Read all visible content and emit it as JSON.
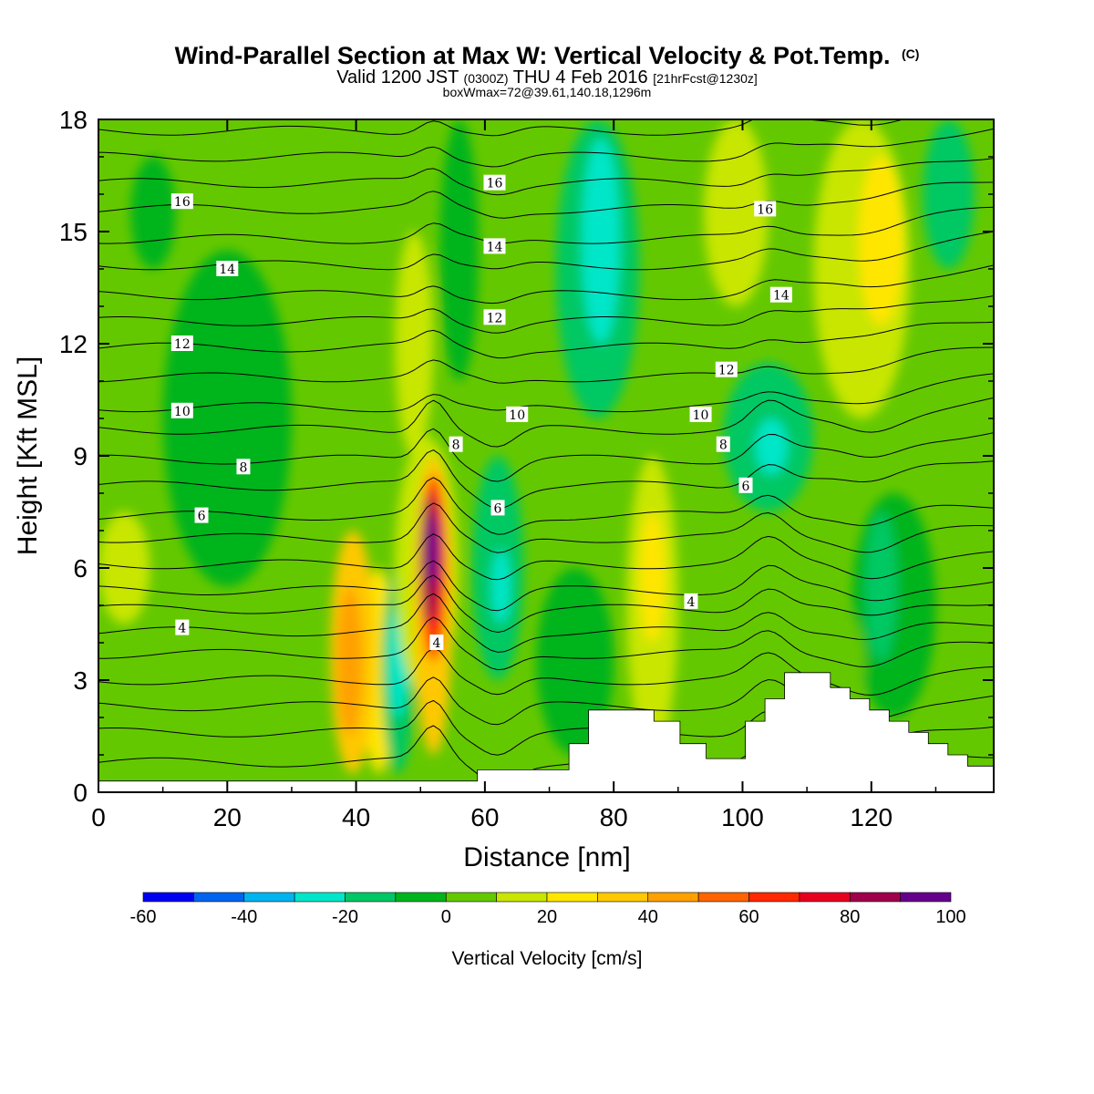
{
  "header": {
    "title": "Wind-Parallel Section at Max W: Vertical Velocity & Pot.Temp.",
    "title_mark": "(C)",
    "subtitle_parts": [
      "Valid 1200 JST ",
      "(0300Z)",
      " THU 4 Feb 2016 ",
      "[21hrFcst@1230z]"
    ],
    "subtitle2": "boxWmax=72@39.61,140.18,1296m"
  },
  "chart_data": {
    "type": "heatmap",
    "xlabel": "Distance [nm]",
    "ylabel": "Height [Kft MSL]",
    "xlim": [
      0,
      139
    ],
    "ylim": [
      0,
      18
    ],
    "x_ticks": [
      0,
      20,
      40,
      60,
      80,
      100,
      120
    ],
    "y_ticks": [
      0,
      3,
      6,
      9,
      12,
      15,
      18
    ],
    "colorbar": {
      "label": "Vertical Velocity [cm/s]",
      "tick_values": [
        -60,
        -40,
        -20,
        0,
        20,
        40,
        60,
        80,
        100
      ],
      "levels": [
        -60,
        -50,
        -40,
        -30,
        -20,
        -10,
        0,
        10,
        20,
        30,
        40,
        50,
        60,
        70,
        80,
        90,
        100
      ],
      "colors": [
        "#0000f0",
        "#0064f0",
        "#00b4f0",
        "#00e6c8",
        "#00c864",
        "#00b41e",
        "#64c800",
        "#c8e600",
        "#ffe600",
        "#ffc800",
        "#ffa000",
        "#ff6400",
        "#ff2800",
        "#e6001e",
        "#a0004b",
        "#64008c"
      ]
    },
    "background_w_cms": 5,
    "w_cells_cms": [
      {
        "x": [
          10,
          30
        ],
        "y": [
          5.5,
          14.5
        ],
        "w": -5
      },
      {
        "x": [
          14,
          20
        ],
        "y": [
          6.5,
          9
        ],
        "w": -5
      },
      {
        "x": [
          5,
          12
        ],
        "y": [
          14,
          17
        ],
        "w": -5
      },
      {
        "x": [
          0,
          8
        ],
        "y": [
          4.5,
          7.5
        ],
        "w": 15
      },
      {
        "x": [
          41,
          46
        ],
        "y": [
          0.5,
          6
        ],
        "w": 25
      },
      {
        "x": [
          36,
          43
        ],
        "y": [
          0.5,
          7
        ],
        "w": 35
      },
      {
        "x": [
          37,
          41
        ],
        "y": [
          1.5,
          5.5
        ],
        "w": 45
      },
      {
        "x": [
          44,
          49
        ],
        "y": [
          0.5,
          6
        ],
        "w": -15
      },
      {
        "x": [
          45,
          48
        ],
        "y": [
          2,
          5
        ],
        "w": -25
      },
      {
        "x": [
          46,
          56
        ],
        "y": [
          2.5,
          9.5
        ],
        "w": 15
      },
      {
        "x": [
          49,
          55
        ],
        "y": [
          1,
          9
        ],
        "w": 35
      },
      {
        "x": [
          50,
          54
        ],
        "y": [
          3.5,
          8.5
        ],
        "w": 60
      },
      {
        "x": [
          50,
          53
        ],
        "y": [
          4.5,
          8
        ],
        "w": 80
      },
      {
        "x": [
          51,
          53
        ],
        "y": [
          5.5,
          7.5
        ],
        "w": 100
      },
      {
        "x": [
          46,
          52
        ],
        "y": [
          9,
          15
        ],
        "w": 15
      },
      {
        "x": [
          53,
          59
        ],
        "y": [
          11,
          18
        ],
        "w": -5
      },
      {
        "x": [
          58,
          66
        ],
        "y": [
          3,
          9
        ],
        "w": -15
      },
      {
        "x": [
          61,
          64
        ],
        "y": [
          4.5,
          6.5
        ],
        "w": -25
      },
      {
        "x": [
          71,
          84
        ],
        "y": [
          10,
          18
        ],
        "w": -15
      },
      {
        "x": [
          75,
          81
        ],
        "y": [
          12,
          17.5
        ],
        "w": -25
      },
      {
        "x": [
          68,
          80
        ],
        "y": [
          1,
          6
        ],
        "w": -5
      },
      {
        "x": [
          82,
          90
        ],
        "y": [
          1,
          9
        ],
        "w": 15
      },
      {
        "x": [
          84,
          88
        ],
        "y": [
          4,
          7.5
        ],
        "w": 25
      },
      {
        "x": [
          97,
          111
        ],
        "y": [
          7.5,
          11.5
        ],
        "w": -15
      },
      {
        "x": [
          102,
          107
        ],
        "y": [
          8.5,
          10
        ],
        "w": -25
      },
      {
        "x": [
          94,
          104
        ],
        "y": [
          13,
          18
        ],
        "w": 15
      },
      {
        "x": [
          111,
          126
        ],
        "y": [
          10,
          18
        ],
        "w": 15
      },
      {
        "x": [
          118,
          125
        ],
        "y": [
          12.5,
          17
        ],
        "w": 25
      },
      {
        "x": [
          117,
          130
        ],
        "y": [
          2,
          8
        ],
        "w": -5
      },
      {
        "x": [
          119,
          124
        ],
        "y": [
          3.5,
          7.5
        ],
        "w": -15
      },
      {
        "x": [
          128,
          136
        ],
        "y": [
          14,
          18
        ],
        "w": -15
      },
      {
        "x": [
          110,
          119
        ],
        "y": [
          2,
          5
        ],
        "w": 5
      }
    ],
    "terrain_kft": [
      0.3,
      0.3,
      0.3,
      0.3,
      0.3,
      0.3,
      0.3,
      0.3,
      0.3,
      0.3,
      0.3,
      0.3,
      0.3,
      0.3,
      0.3,
      0.3,
      0.3,
      0.3,
      0.3,
      0.3,
      0.3,
      0.3,
      0.3,
      0.3,
      0.3,
      0.3,
      0.3,
      0.3,
      0.3,
      0.3,
      0.3,
      0.3,
      0.3,
      0.3,
      0.3,
      0.3,
      0.3,
      0.3,
      0.3,
      0.3,
      0.3,
      0.3,
      0.3,
      0.3,
      0.3,
      0.3,
      0.3,
      0.3,
      0.3,
      0.3,
      0.3,
      0.3,
      0.3,
      0.3,
      0.3,
      0.3,
      0.3,
      0.3,
      0.6,
      0.6,
      0.6,
      0.6,
      0.6,
      0.6,
      0.6,
      0.6,
      0.6,
      0.6,
      0.6,
      0.6,
      0.6,
      0.6,
      1.3,
      1.3,
      1.3,
      2.2,
      2.2,
      2.2,
      2.2,
      2.2,
      2.2,
      2.2,
      2.2,
      2.2,
      2.2,
      1.9,
      1.9,
      1.9,
      1.9,
      1.3,
      1.3,
      1.3,
      1.3,
      0.9,
      0.9,
      0.9,
      0.9,
      0.9,
      0.9,
      1.9,
      1.9,
      1.9,
      2.5,
      2.5,
      2.5,
      3.2,
      3.2,
      3.2,
      3.2,
      3.2,
      3.2,
      3.2,
      2.8,
      2.8,
      2.8,
      2.5,
      2.5,
      2.5,
      2.2,
      2.2,
      2.2,
      1.9,
      1.9,
      1.9,
      1.6,
      1.6,
      1.6,
      1.3,
      1.3,
      1.3,
      1.0,
      1.0,
      1.0,
      0.7,
      0.7,
      0.7,
      0.7,
      0.7
    ],
    "theta_contour_heights_kft": [
      0.8,
      1.6,
      2.3,
      3.0,
      3.7,
      4.3,
      4.9,
      5.4,
      6.1,
      6.8,
      7.4,
      8.2,
      8.9,
      9.7,
      10.3,
      11.1,
      11.9,
      12.6,
      13.3,
      14.1,
      14.8,
      15.6,
      16.3,
      17.0,
      17.7
    ],
    "theta_contour_labels": [
      {
        "text": "16",
        "x": 13,
        "y": 15.8
      },
      {
        "text": "14",
        "x": 20,
        "y": 14.0
      },
      {
        "text": "12",
        "x": 13,
        "y": 12.0
      },
      {
        "text": "10",
        "x": 13,
        "y": 10.2
      },
      {
        "text": "8",
        "x": 22.5,
        "y": 8.7
      },
      {
        "text": "6",
        "x": 16,
        "y": 7.4
      },
      {
        "text": "4",
        "x": 13,
        "y": 4.4
      },
      {
        "text": "16",
        "x": 61.5,
        "y": 16.3
      },
      {
        "text": "14",
        "x": 61.5,
        "y": 14.6
      },
      {
        "text": "12",
        "x": 61.5,
        "y": 12.7
      },
      {
        "text": "10",
        "x": 65,
        "y": 10.1
      },
      {
        "text": "8",
        "x": 55.5,
        "y": 9.3
      },
      {
        "text": "6",
        "x": 62,
        "y": 7.6
      },
      {
        "text": "4",
        "x": 52.5,
        "y": 4.0
      },
      {
        "text": "16",
        "x": 103.5,
        "y": 15.6
      },
      {
        "text": "14",
        "x": 106,
        "y": 13.3
      },
      {
        "text": "12",
        "x": 97.5,
        "y": 11.3
      },
      {
        "text": "10",
        "x": 93.5,
        "y": 10.1
      },
      {
        "text": "8",
        "x": 97,
        "y": 9.3
      },
      {
        "text": "6",
        "x": 100.5,
        "y": 8.2
      },
      {
        "text": "4",
        "x": 92,
        "y": 5.1
      }
    ]
  }
}
